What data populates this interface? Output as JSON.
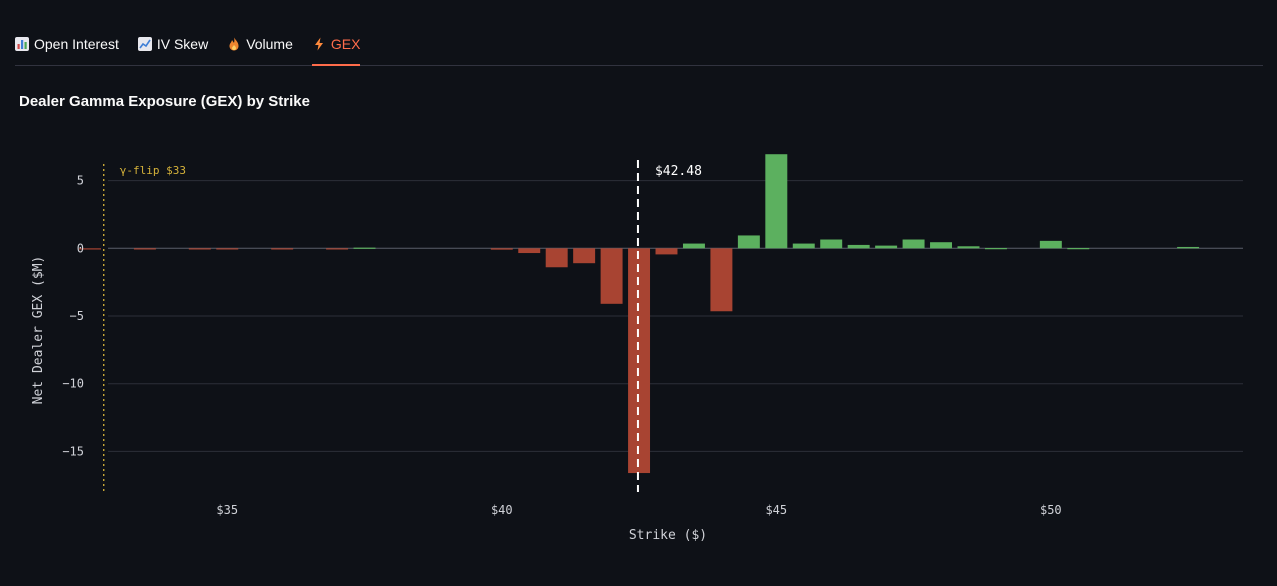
{
  "tabs": [
    {
      "label": "Open Interest",
      "icon": "bar-chart-icon"
    },
    {
      "label": "IV Skew",
      "icon": "line-chart-icon"
    },
    {
      "label": "Volume",
      "icon": "fire-icon"
    },
    {
      "label": "GEX",
      "icon": "lightning-icon"
    }
  ],
  "active_tab": "GEX",
  "colors": {
    "positive": "#5cb05f",
    "negative": "#a84432",
    "accent": "#ff6c4b",
    "flip": "#d6b33a"
  },
  "chart_data": {
    "type": "bar",
    "title": "Dealer Gamma Exposure (GEX) by Strike",
    "xlabel": "Strike ($)",
    "ylabel": "Net Dealer GEX ($M)",
    "xlim": [
      32.5,
      53.5
    ],
    "ylim": [
      -18,
      8
    ],
    "x_ticks": [
      35,
      40,
      45,
      50
    ],
    "x_tick_labels": [
      "$35",
      "$40",
      "$45",
      "$50"
    ],
    "y_ticks": [
      5,
      0,
      -5,
      -10,
      -15
    ],
    "y_tick_labels": [
      "5",
      "0",
      "−5",
      "−10",
      "−15"
    ],
    "grid": true,
    "bar_width": 0.4,
    "x": [
      32.5,
      33,
      33.5,
      34,
      34.5,
      35,
      35.5,
      36,
      36.5,
      37,
      37.5,
      38,
      38.5,
      39,
      39.5,
      40,
      40.5,
      41,
      41.5,
      42,
      42.5,
      43,
      43.5,
      44,
      44.5,
      45,
      45.5,
      46,
      46.5,
      47,
      47.5,
      48,
      48.5,
      49,
      49.5,
      50,
      50.5,
      51,
      51.5,
      52,
      52.5,
      53
    ],
    "values": [
      -0.02,
      0,
      -0.02,
      0,
      -0.02,
      -0.05,
      0,
      -0.02,
      0,
      -0.02,
      0.05,
      0,
      0,
      0,
      0,
      -0.1,
      -0.35,
      -1.4,
      -1.1,
      -4.1,
      -16.6,
      -0.45,
      0.35,
      -4.65,
      0.95,
      6.95,
      0.35,
      0.65,
      0.25,
      0.2,
      0.65,
      0.45,
      0.15,
      0.02,
      0,
      0.55,
      0.02,
      0,
      0,
      0,
      0.1,
      0
    ],
    "annotations": [
      {
        "type": "vline",
        "x": 42.48,
        "label": "$42.48",
        "style": "dashed",
        "color": "#ffffff"
      },
      {
        "type": "vline",
        "x": 32.75,
        "label": "γ-flip $33",
        "style": "dotted",
        "color": "#d6b33a"
      }
    ]
  }
}
